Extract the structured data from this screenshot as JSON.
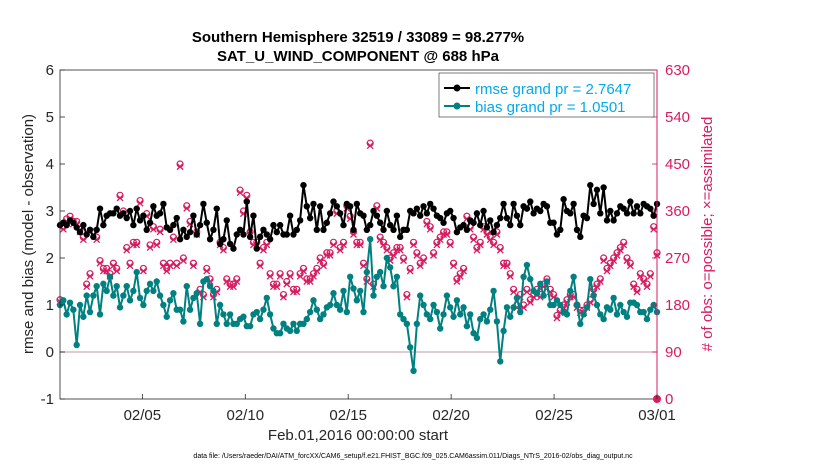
{
  "colors": {
    "rmse": "#000000",
    "bias": "#008080",
    "obs": "#d81b60",
    "zero_line": "#d9b8c4",
    "legend_text": "#00aaee"
  },
  "chart_data": {
    "type": "line",
    "title": "Southern Hemisphere 32519 / 33089 = 98.277%",
    "subtitle": "SAT_U_WIND_COMPONENT @ 688 hPa",
    "xlabel": "Feb.01,2016 00:00:00 start",
    "ylabel": "rmse and bias (model - observation)",
    "ylabel_right": "# of obs: o=possible; ×=assimilated",
    "footnote": "data file: /Users/raeder/DAI/ATM_forcXX/CAM6_setup/f.e21.FHIST_BGC.f09_025.CAM6assim.011/Diags_NTrS_2016-02/obs_diag_output.nc",
    "xlim": [
      1,
      30
    ],
    "ylim": [
      -1,
      6
    ],
    "ylim_right": [
      0,
      630
    ],
    "x_ticks": [
      5,
      10,
      15,
      20,
      25,
      30
    ],
    "x_tick_labels": [
      "02/05",
      "02/10",
      "02/15",
      "02/20",
      "02/25",
      "03/01"
    ],
    "y_ticks": [
      -1,
      0,
      1,
      2,
      3,
      4,
      5,
      6
    ],
    "y_tick_labels": [
      "-1",
      "0",
      "1",
      "2",
      "3",
      "4",
      "5",
      "6"
    ],
    "y_ticks_right": [
      0,
      90,
      180,
      270,
      360,
      450,
      540,
      630
    ],
    "y_tick_labels_right": [
      "0",
      "90",
      "180",
      "270",
      "360",
      "450",
      "540",
      "630"
    ],
    "legend": {
      "placement": "top-right",
      "entries": [
        "rmse grand pr = 2.7647",
        "bias grand pr = 1.0501"
      ]
    },
    "series": [
      {
        "name": "rmse grand pr = 2.7647",
        "color": "#000000",
        "values": [
          2.7,
          2.75,
          2.7,
          2.8,
          2.75,
          2.65,
          2.55,
          2.7,
          2.5,
          2.6,
          2.45,
          2.6,
          3.05,
          2.7,
          2.9,
          2.95,
          2.95,
          3.05,
          2.9,
          2.95,
          2.85,
          3.0,
          2.7,
          3.05,
          2.8,
          2.9,
          2.6,
          2.75,
          3.1,
          2.9,
          2.95,
          3.15,
          2.65,
          2.6,
          2.7,
          2.85,
          2.4,
          2.6,
          2.45,
          2.55,
          2.9,
          2.5,
          2.7,
          3.15,
          2.75,
          2.4,
          2.6,
          3.05,
          2.3,
          2.4,
          2.8,
          2.3,
          2.2,
          2.5,
          2.6,
          2.5,
          3.2,
          2.45,
          2.9,
          2.2,
          2.45,
          2.6,
          2.5,
          2.4,
          2.7,
          2.55,
          2.7,
          2.5,
          2.5,
          2.9,
          2.5,
          2.6,
          2.8,
          3.55,
          3.1,
          2.85,
          3.15,
          2.6,
          3.1,
          2.6,
          2.75,
          2.95,
          3.2,
          3.1,
          2.95,
          2.7,
          3.15,
          3.1,
          2.6,
          3.15,
          2.95,
          2.9,
          2.6,
          2.7,
          3.0,
          2.9,
          2.75,
          2.6,
          3.0,
          2.7,
          2.6,
          2.9,
          2.45,
          2.6,
          2.6,
          3.0,
          2.95,
          3.05,
          2.9,
          3.1,
          2.95,
          3.15,
          3.05,
          2.9,
          2.85,
          2.75,
          2.95,
          3.0,
          2.85,
          2.55,
          2.65,
          2.7,
          2.6,
          2.8,
          2.75,
          2.95,
          2.7,
          3.0,
          2.65,
          2.8,
          2.55,
          2.7,
          2.85,
          3.15,
          2.85,
          2.7,
          3.15,
          2.9,
          2.7,
          3.1,
          3.05,
          3.2,
          2.95,
          3.05,
          3.0,
          3.15,
          3.1,
          2.75,
          2.75,
          2.5,
          2.6,
          3.25,
          3.0,
          2.95,
          3.15,
          2.6,
          2.45,
          2.9,
          2.85,
          3.55,
          3.15,
          3.45,
          2.95,
          3.5,
          2.8,
          3.0,
          2.8,
          2.95,
          3.1,
          3.05,
          2.95,
          3.2,
          2.95,
          3.1,
          2.95,
          3.15,
          3.1,
          3.05,
          2.9,
          3.15
        ]
      },
      {
        "name": "bias grand pr = 1.0501",
        "color": "#008080",
        "values": [
          1.0,
          1.1,
          0.8,
          1.05,
          0.9,
          0.15,
          1.0,
          0.75,
          1.2,
          0.85,
          1.2,
          1.4,
          0.8,
          1.45,
          1.3,
          1.6,
          1.2,
          1.4,
          0.95,
          1.2,
          1.4,
          1.1,
          1.3,
          1.7,
          1.15,
          1.0,
          1.3,
          1.45,
          1.3,
          1.5,
          1.2,
          1.0,
          0.75,
          1.1,
          1.25,
          0.9,
          0.9,
          0.65,
          1.4,
          0.9,
          1.15,
          1.25,
          0.6,
          1.5,
          1.55,
          1.4,
          1.3,
          0.6,
          1.0,
          0.8,
          0.6,
          0.8,
          0.6,
          0.6,
          0.7,
          0.75,
          0.55,
          0.55,
          0.8,
          0.85,
          0.7,
          0.9,
          1.15,
          0.8,
          0.5,
          0.4,
          0.4,
          0.6,
          0.5,
          0.45,
          0.6,
          0.45,
          0.6,
          0.6,
          0.7,
          0.85,
          1.1,
          0.9,
          0.7,
          0.8,
          0.95,
          1.0,
          1.25,
          1.0,
          0.9,
          1.3,
          0.85,
          1.6,
          1.35,
          1.1,
          1.3,
          0.85,
          1.7,
          2.4,
          1.2,
          1.6,
          1.7,
          1.4,
          2.0,
          1.8,
          1.4,
          1.6,
          0.8,
          0.7,
          0.6,
          0.1,
          -0.4,
          0.6,
          1.2,
          1.0,
          0.8,
          0.7,
          1.0,
          0.85,
          0.5,
          0.8,
          1.2,
          0.95,
          0.75,
          1.1,
          0.8,
          0.95,
          0.55,
          0.8,
          0.4,
          0.3,
          0.7,
          0.8,
          0.65,
          0.9,
          1.3,
          0.65,
          -0.2,
          0.45,
          0.95,
          0.75,
          0.95,
          1.15,
          0.85,
          1.6,
          1.85,
          1.55,
          1.3,
          1.25,
          1.45,
          1.2,
          1.5,
          1.0,
          1.0,
          1.1,
          1.0,
          0.85,
          0.8,
          1.3,
          1.6,
          1.0,
          0.6,
          0.8,
          0.95,
          1.55,
          1.2,
          1.0,
          0.8,
          0.7,
          0.95,
          0.9,
          1.15,
          0.8,
          1.0,
          0.85,
          0.75,
          1.05,
          1.05,
          1.0,
          0.85,
          0.85,
          0.7,
          0.9,
          1.0,
          0.85
        ]
      }
    ],
    "obs_possible": [
      190,
      330,
      345,
      350,
      340,
      340,
      325,
      310,
      220,
      240,
      320,
      310,
      265,
      250,
      250,
      240,
      260,
      250,
      390,
      360,
      290,
      260,
      300,
      300,
      380,
      250,
      355,
      295,
      330,
      300,
      325,
      260,
      250,
      260,
      310,
      260,
      450,
      270,
      370,
      340,
      260,
      320,
      210,
      200,
      250,
      230,
      200,
      210,
      300,
      290,
      230,
      220,
      220,
      230,
      400,
      360,
      390,
      320,
      300,
      300,
      260,
      290,
      300,
      240,
      220,
      220,
      240,
      200,
      225,
      240,
      210,
      210,
      240,
      250,
      230,
      230,
      240,
      250,
      270,
      260,
      280,
      280,
      300,
      360,
      290,
      300,
      370,
      350,
      320,
      300,
      300,
      260,
      230,
      490,
      220,
      370,
      310,
      300,
      290,
      270,
      280,
      290,
      290,
      270,
      200,
      250,
      300,
      280,
      260,
      270,
      340,
      330,
      280,
      300,
      310,
      320,
      320,
      300,
      260,
      230,
      240,
      250,
      350,
      330,
      310,
      290,
      300,
      330,
      320,
      310,
      300,
      320,
      290,
      260,
      260,
      240,
      210,
      180,
      200,
      180,
      210,
      190,
      200,
      210,
      200,
      220,
      230,
      210,
      200,
      160,
      170,
      180,
      190,
      200,
      200,
      180,
      170,
      170,
      180,
      190,
      210,
      220,
      230,
      270,
      250,
      260,
      270,
      280,
      290,
      300,
      270,
      260,
      220,
      210,
      240,
      230,
      220,
      240,
      330,
      280
    ],
    "obs_assimilated": [
      186,
      325,
      340,
      345,
      335,
      335,
      320,
      305,
      215,
      235,
      315,
      305,
      260,
      245,
      245,
      235,
      255,
      245,
      385,
      355,
      285,
      255,
      295,
      295,
      375,
      245,
      350,
      290,
      325,
      295,
      320,
      255,
      245,
      255,
      305,
      255,
      445,
      265,
      365,
      335,
      255,
      315,
      205,
      195,
      245,
      225,
      195,
      205,
      295,
      285,
      225,
      215,
      215,
      225,
      395,
      355,
      385,
      315,
      295,
      295,
      255,
      285,
      295,
      235,
      215,
      215,
      235,
      195,
      220,
      235,
      205,
      205,
      235,
      245,
      225,
      225,
      235,
      245,
      265,
      255,
      275,
      275,
      295,
      355,
      285,
      295,
      365,
      345,
      315,
      295,
      295,
      255,
      225,
      485,
      215,
      365,
      305,
      295,
      285,
      265,
      275,
      285,
      285,
      265,
      195,
      245,
      295,
      275,
      255,
      265,
      335,
      325,
      275,
      295,
      305,
      315,
      315,
      295,
      255,
      225,
      235,
      245,
      345,
      325,
      305,
      285,
      295,
      325,
      315,
      305,
      295,
      315,
      285,
      255,
      255,
      235,
      205,
      175,
      195,
      175,
      205,
      185,
      195,
      205,
      195,
      215,
      225,
      205,
      195,
      155,
      165,
      175,
      185,
      195,
      195,
      175,
      165,
      165,
      175,
      185,
      205,
      215,
      225,
      265,
      245,
      255,
      265,
      275,
      285,
      295,
      265,
      255,
      215,
      205,
      235,
      225,
      215,
      235,
      325,
      275
    ]
  }
}
